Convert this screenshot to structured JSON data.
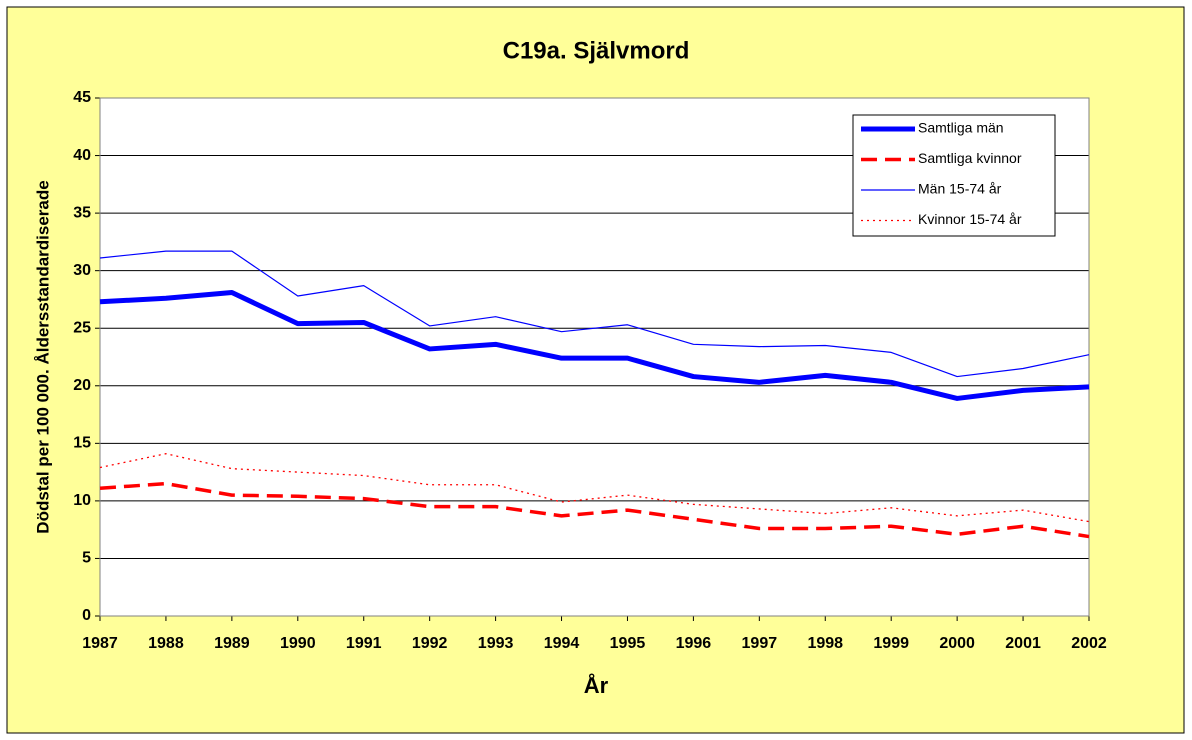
{
  "chart_data": {
    "type": "line",
    "title": "C19a. Självmord",
    "x_label": "År",
    "y_label": "Dödstal per 100 000. Åldersstandardiserade",
    "x": [
      1987,
      1988,
      1989,
      1990,
      1991,
      1992,
      1993,
      1994,
      1995,
      1996,
      1997,
      1998,
      1999,
      2000,
      2001,
      2002
    ],
    "xlim": [
      1987,
      2002
    ],
    "xticks": [
      1987,
      1988,
      1989,
      1990,
      1991,
      1992,
      1993,
      1994,
      1995,
      1996,
      1997,
      1998,
      1999,
      2000,
      2001,
      2002
    ],
    "ylim": [
      0,
      45
    ],
    "yticks": [
      0,
      5,
      10,
      15,
      20,
      25,
      30,
      35,
      40,
      45
    ],
    "grid": true,
    "legend": "upper right",
    "series": [
      {
        "name": "Samtliga män",
        "color": "#0000ff",
        "line_width": 5,
        "dash": "none",
        "values": [
          27.3,
          27.6,
          28.1,
          25.4,
          25.5,
          23.2,
          23.6,
          22.4,
          22.4,
          20.8,
          20.3,
          20.9,
          20.3,
          18.9,
          19.6,
          19.9
        ]
      },
      {
        "name": "Samtliga kvinnor",
        "color": "#ff0000",
        "line_width": 3.5,
        "dash": "16,8",
        "values": [
          11.1,
          11.5,
          10.5,
          10.4,
          10.2,
          9.5,
          9.5,
          8.7,
          9.2,
          8.4,
          7.6,
          7.6,
          7.8,
          7.1,
          7.8,
          6.9
        ]
      },
      {
        "name": "Män 15-74 år",
        "color": "#0000ff",
        "line_width": 1.2,
        "dash": "none",
        "values": [
          31.1,
          31.7,
          31.7,
          27.8,
          28.7,
          25.2,
          26.0,
          24.7,
          25.3,
          23.6,
          23.4,
          23.5,
          22.9,
          20.8,
          21.5,
          22.7
        ]
      },
      {
        "name": "Kvinnor 15-74 år",
        "color": "#ff0000",
        "line_width": 1.3,
        "dash": "2,4",
        "values": [
          12.9,
          14.1,
          12.8,
          12.5,
          12.2,
          11.4,
          11.4,
          9.9,
          10.5,
          9.7,
          9.3,
          8.9,
          9.4,
          8.7,
          9.2,
          8.2
        ]
      }
    ]
  }
}
